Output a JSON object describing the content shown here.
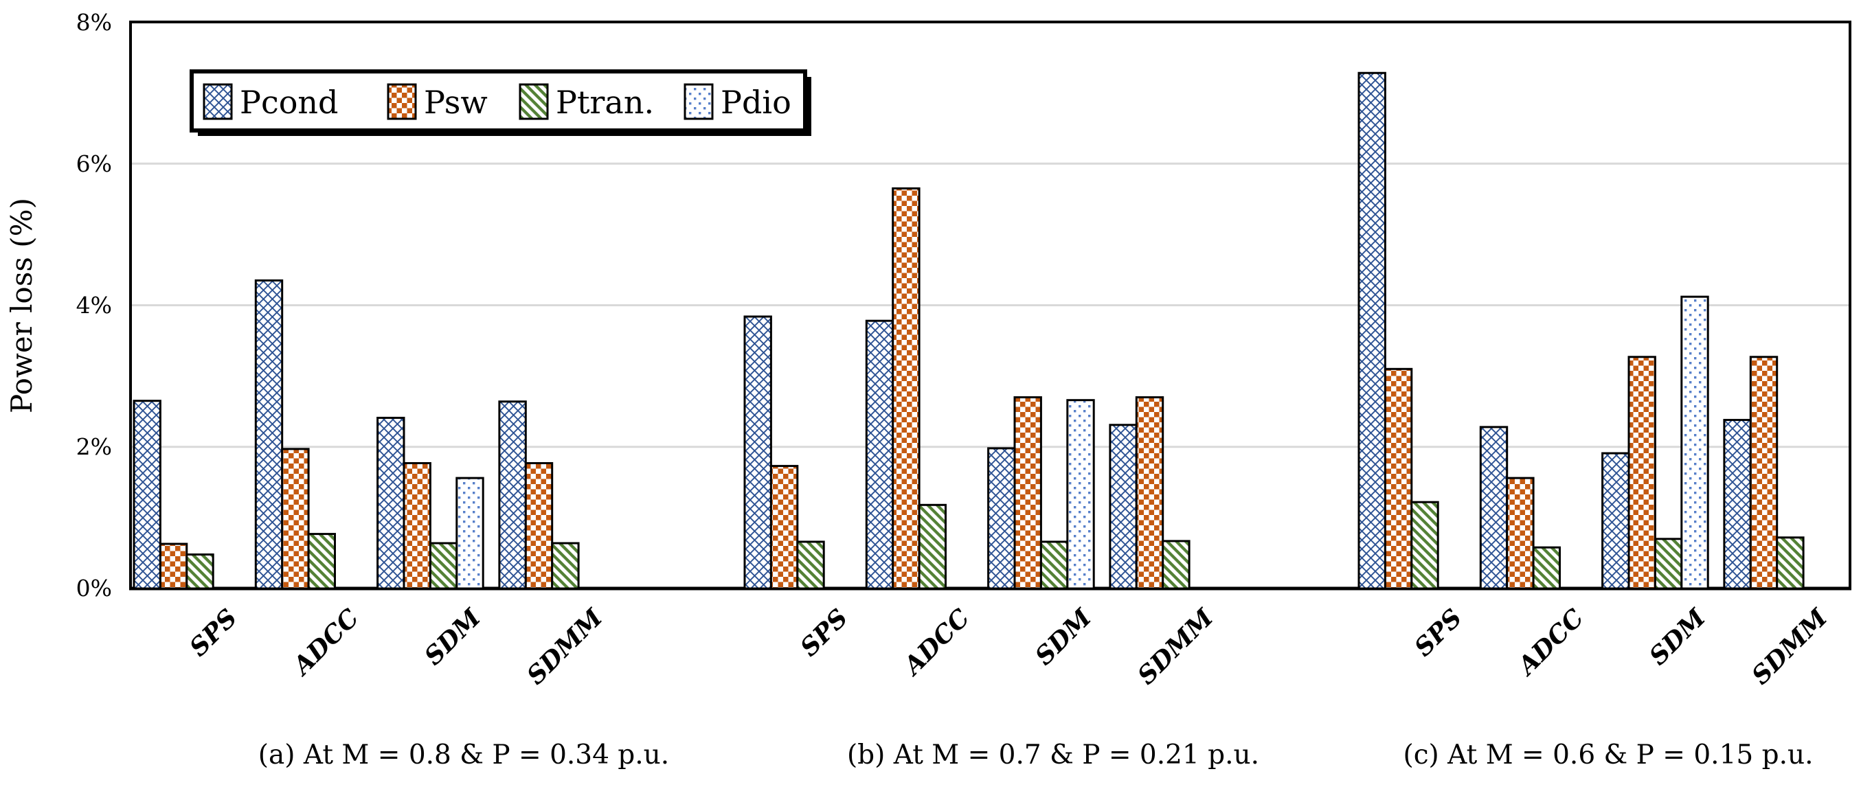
{
  "figure": {
    "background": "#ffffff",
    "axis_color": "#000000",
    "gridline_color": "#d9d9d9",
    "bar_outline_color": "#000000"
  },
  "chart_data": {
    "type": "bar",
    "title": "",
    "xlabel": "",
    "ylabel": "Power loss (%)",
    "ylim": [
      0,
      8
    ],
    "yticks": [
      "0%",
      "2%",
      "4%",
      "6%",
      "8%"
    ],
    "ytick_values": [
      0,
      2,
      4,
      6,
      8
    ],
    "grid": "horizontal",
    "legend_position": "top-left",
    "series_names": [
      "Pcond",
      "Psw",
      "Ptran.",
      "Pdio"
    ],
    "series_colors": {
      "Pcond": "#2e5394",
      "Psw": "#c55a11",
      "Ptran": "#538135",
      "Pdio": "#4472c4"
    },
    "series_patterns": {
      "Pcond": "blue diagonal crosshatch",
      "Psw": "orange checkerboard",
      "Ptran": "green diagonal stripes",
      "Pdio": "light blue dots"
    },
    "groups": [
      {
        "caption": "(a) At M = 0.8 & P = 0.34 p.u.",
        "categories": [
          "SPS",
          "ADCC",
          "SDM",
          "SDMM"
        ],
        "series": [
          {
            "name": "Pcond",
            "values": [
              2.65,
              4.35,
              2.41,
              2.64
            ]
          },
          {
            "name": "Psw",
            "values": [
              0.63,
              1.97,
              1.77,
              1.77
            ]
          },
          {
            "name": "Ptran.",
            "values": [
              0.48,
              0.77,
              0.64,
              0.64
            ]
          },
          {
            "name": "Pdio",
            "values": [
              0,
              0,
              1.56,
              0
            ]
          }
        ]
      },
      {
        "caption": "(b) At M = 0.7 & P = 0.21  p.u.",
        "categories": [
          "SPS",
          "ADCC",
          "SDM",
          "SDMM"
        ],
        "series": [
          {
            "name": "Pcond",
            "values": [
              3.84,
              3.78,
              1.98,
              2.31
            ]
          },
          {
            "name": "Psw",
            "values": [
              1.73,
              5.65,
              2.7,
              2.7
            ]
          },
          {
            "name": "Ptran.",
            "values": [
              0.66,
              1.18,
              0.66,
              0.67
            ]
          },
          {
            "name": "Pdio",
            "values": [
              0,
              0,
              2.66,
              0
            ]
          }
        ]
      },
      {
        "caption": "(c)  At M = 0.6 & P = 0.15 p.u.",
        "categories": [
          "SPS",
          "ADCC",
          "SDM",
          "SDMM"
        ],
        "series": [
          {
            "name": "Pcond",
            "values": [
              7.28,
              2.28,
              1.91,
              2.38
            ]
          },
          {
            "name": "Psw",
            "values": [
              3.1,
              1.56,
              3.27,
              3.27
            ]
          },
          {
            "name": "Ptran.",
            "values": [
              1.22,
              0.58,
              0.7,
              0.72
            ]
          },
          {
            "name": "Pdio",
            "values": [
              0,
              0,
              4.12,
              0
            ]
          }
        ]
      }
    ]
  }
}
